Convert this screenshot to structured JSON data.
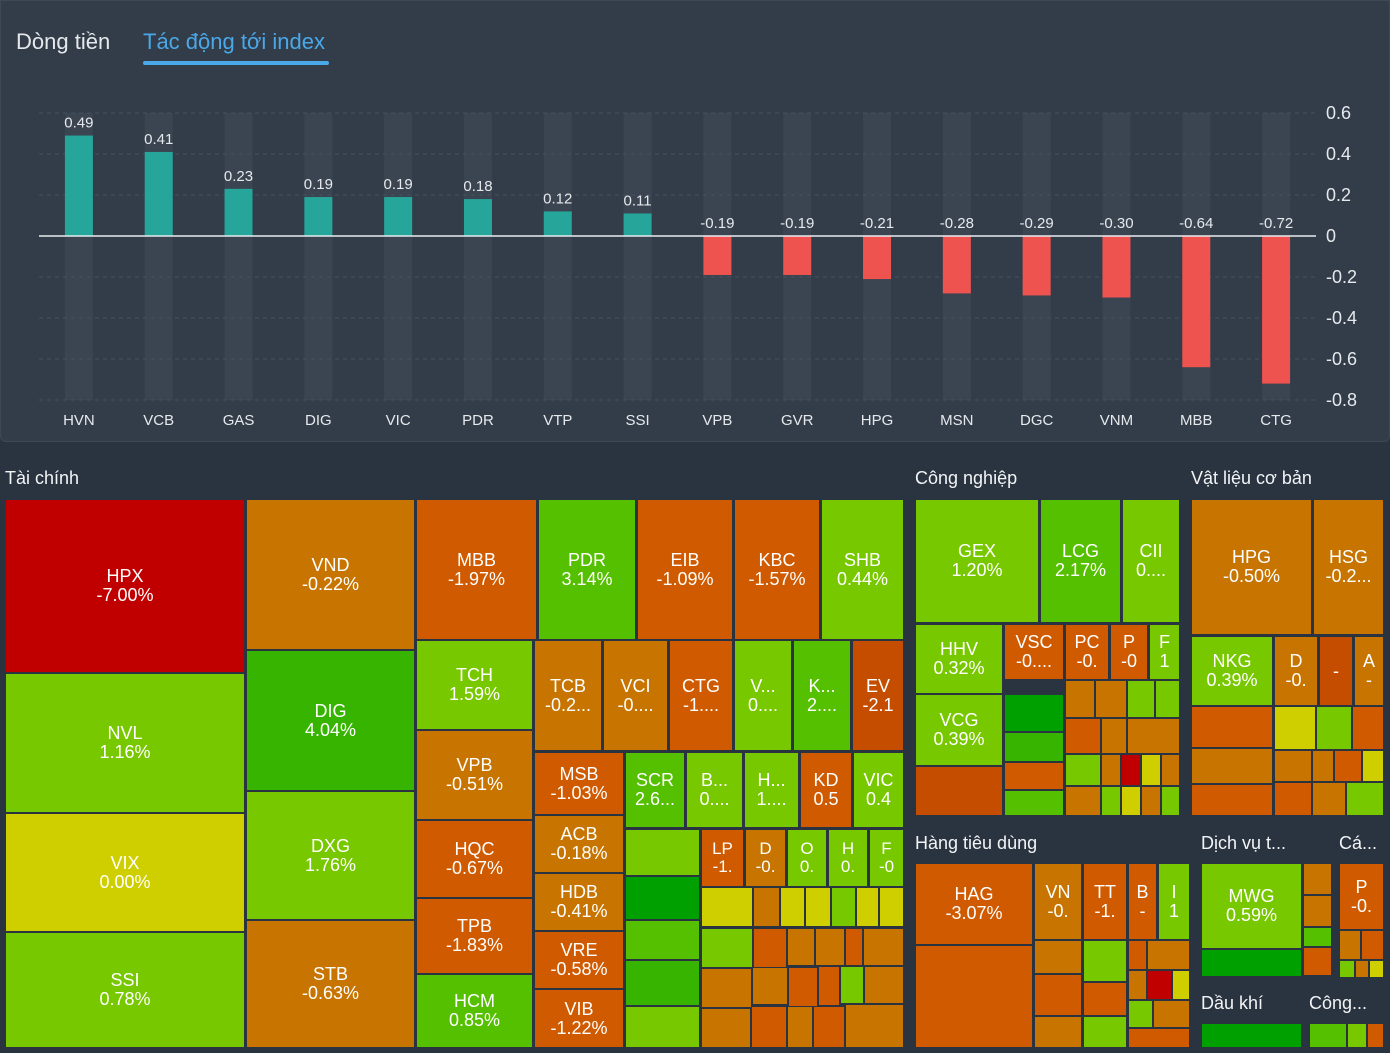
{
  "tabs": {
    "flow": "Dòng tiền",
    "impact": "Tác động tới index"
  },
  "colors": {
    "positive_bar": "#26a69a",
    "negative_bar": "#ef5350",
    "panel": "#323d49",
    "background": "#2a3440"
  },
  "chart_data": {
    "type": "bar",
    "title": "Tác động tới index",
    "categories": [
      "HVN",
      "VCB",
      "GAS",
      "DIG",
      "VIC",
      "PDR",
      "VTP",
      "SSI",
      "VPB",
      "GVR",
      "HPG",
      "MSN",
      "DGC",
      "VNM",
      "MBB",
      "CTG"
    ],
    "values": [
      0.49,
      0.41,
      0.23,
      0.19,
      0.19,
      0.18,
      0.12,
      0.11,
      -0.19,
      -0.19,
      -0.21,
      -0.28,
      -0.29,
      -0.3,
      -0.64,
      -0.72
    ],
    "value_labels": [
      "0.49",
      "0.41",
      "0.23",
      "0.19",
      "0.19",
      "0.18",
      "0.12",
      "0.11",
      "-0.19",
      "-0.19",
      "-0.21",
      "-0.28",
      "-0.29",
      "-0.30",
      "-0.64",
      "-0.72"
    ],
    "yticks": [
      "0.6",
      "0.4",
      "0.2",
      "0",
      "-0.2",
      "-0.4",
      "-0.6",
      "-0.8"
    ],
    "ytick_values": [
      0.6,
      0.4,
      0.2,
      0,
      -0.2,
      -0.4,
      -0.6,
      -0.8
    ],
    "ylim": [
      -0.8,
      0.6
    ],
    "xlabel": "",
    "ylabel": ""
  },
  "heatmap": {
    "sectors": {
      "finance": "Tài chính",
      "industrial": "Công nghiệp",
      "materials": "Vật liệu cơ bản",
      "consumer": "Hàng tiêu dùng",
      "services": "Dịch vụ t...",
      "tech": "Cá...",
      "oilgas": "Dầu khí",
      "utilities": "Công..."
    },
    "tiles": [
      {
        "t": "HPX",
        "v": "-7.00%"
      },
      {
        "t": "NVL",
        "v": "1.16%"
      },
      {
        "t": "VIX",
        "v": "0.00%"
      },
      {
        "t": "SSI",
        "v": "0.78%"
      },
      {
        "t": "VND",
        "v": "-0.22%"
      },
      {
        "t": "DIG",
        "v": "4.04%"
      },
      {
        "t": "DXG",
        "v": "1.76%"
      },
      {
        "t": "STB",
        "v": "-0.63%"
      },
      {
        "t": "MBB",
        "v": "-1.97%"
      },
      {
        "t": "PDR",
        "v": "3.14%"
      },
      {
        "t": "EIB",
        "v": "-1.09%"
      },
      {
        "t": "KBC",
        "v": "-1.57%"
      },
      {
        "t": "SHB",
        "v": "0.44%"
      },
      {
        "t": "TCH",
        "v": "1.59%"
      },
      {
        "t": "VPB",
        "v": "-0.51%"
      },
      {
        "t": "HQC",
        "v": "-0.67%"
      },
      {
        "t": "TPB",
        "v": "-1.83%"
      },
      {
        "t": "HCM",
        "v": "0.85%"
      },
      {
        "t": "TCB",
        "v": "-0.2..."
      },
      {
        "t": "VCI",
        "v": "-0...."
      },
      {
        "t": "CTG",
        "v": "-1...."
      },
      {
        "t": "V...",
        "v": "0...."
      },
      {
        "t": "K...",
        "v": "2...."
      },
      {
        "t": "EV",
        "v": "-2.1"
      },
      {
        "t": "MSB",
        "v": "-1.03%"
      },
      {
        "t": "ACB",
        "v": "-0.18%"
      },
      {
        "t": "HDB",
        "v": "-0.41%"
      },
      {
        "t": "VRE",
        "v": "-0.58%"
      },
      {
        "t": "VIB",
        "v": "-1.22%"
      },
      {
        "t": "SCR",
        "v": "2.6..."
      },
      {
        "t": "B...",
        "v": "0...."
      },
      {
        "t": "H...",
        "v": "1...."
      },
      {
        "t": "KD",
        "v": "0.5"
      },
      {
        "t": "VIC",
        "v": "0.4"
      },
      {
        "t": "LP",
        "v": "-1."
      },
      {
        "t": "D",
        "v": "-0."
      },
      {
        "t": "O",
        "v": "0."
      },
      {
        "t": "H",
        "v": "0."
      },
      {
        "t": "F",
        "v": "-0"
      },
      {
        "t": "GEX",
        "v": "1.20%"
      },
      {
        "t": "LCG",
        "v": "2.17%"
      },
      {
        "t": "CII",
        "v": "0...."
      },
      {
        "t": "HHV",
        "v": "0.32%"
      },
      {
        "t": "VCG",
        "v": "0.39%"
      },
      {
        "t": "VSC",
        "v": "-0...."
      },
      {
        "t": "PC",
        "v": "-0."
      },
      {
        "t": "P",
        "v": "-0"
      },
      {
        "t": "F",
        "v": "1"
      },
      {
        "t": "HPG",
        "v": "-0.50%"
      },
      {
        "t": "HSG",
        "v": "-0.2..."
      },
      {
        "t": "NKG",
        "v": "0.39%"
      },
      {
        "t": "D",
        "v": "-0."
      },
      {
        "t": "",
        "v": "-"
      },
      {
        "t": "A",
        "v": "-"
      },
      {
        "t": "HAG",
        "v": "-3.07%"
      },
      {
        "t": "VN",
        "v": "-0."
      },
      {
        "t": "TT",
        "v": "-1."
      },
      {
        "t": "B",
        "v": "-"
      },
      {
        "t": "I",
        "v": "1"
      },
      {
        "t": "MWG",
        "v": "0.59%"
      },
      {
        "t": "P",
        "v": "-0."
      }
    ]
  }
}
